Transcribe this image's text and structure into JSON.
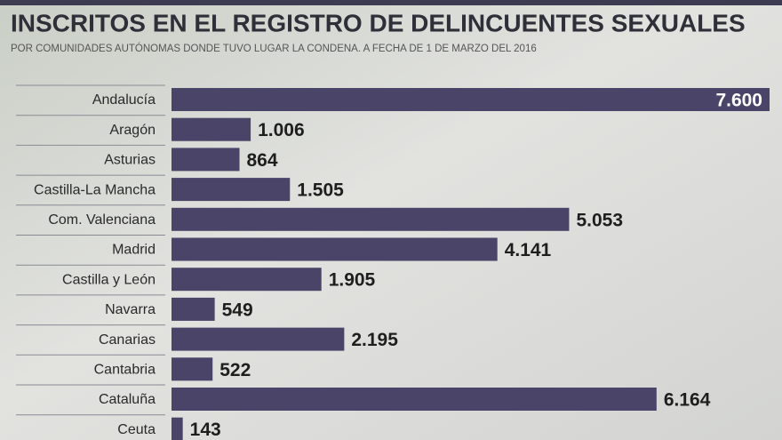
{
  "chart_data": {
    "type": "bar",
    "orientation": "horizontal",
    "title": "INSCRITOS EN EL REGISTRO DE DELINCUENTES SEXUALES",
    "subtitle": "POR COMUNIDADES AUTÓNOMAS DONDE TUVO LUGAR LA CONDENA. A FECHA DE 1 DE MARZO DEL 2016",
    "categories": [
      "Andalucía",
      "Aragón",
      "Asturias",
      "Castilla-La Mancha",
      "Com. Valenciana",
      "Madrid",
      "Castilla y León",
      "Navarra",
      "Canarias",
      "Cantabria",
      "Cataluña",
      "Ceuta"
    ],
    "values": [
      7600,
      1006,
      864,
      1505,
      5053,
      4141,
      1905,
      549,
      2195,
      522,
      6164,
      143
    ],
    "value_labels": [
      "7.600",
      "1.006",
      "864",
      "1.505",
      "5.053",
      "4.141",
      "1.905",
      "549",
      "2.195",
      "522",
      "6.164",
      "143"
    ],
    "color": "#4a4468"
  }
}
